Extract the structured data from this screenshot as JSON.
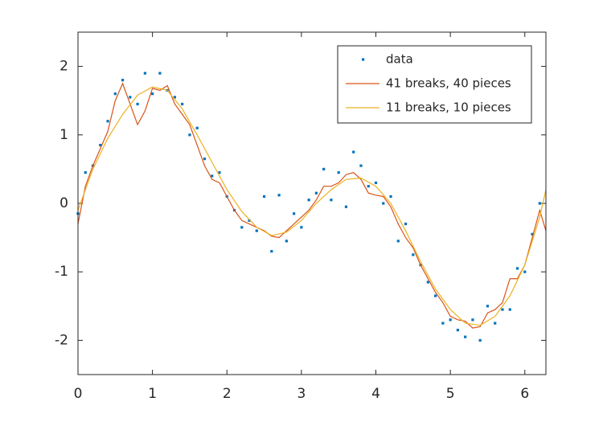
{
  "chart_data": {
    "type": "line",
    "xlim": [
      0,
      6.2832
    ],
    "ylim": [
      -2.5,
      2.5
    ],
    "xticks": [
      0,
      1,
      2,
      3,
      4,
      5,
      6
    ],
    "yticks": [
      -2,
      -1,
      0,
      1,
      2
    ],
    "grid": false,
    "box": true,
    "legend": "northeast",
    "series": [
      {
        "name": "data",
        "color": "#0072bd",
        "style": "markers",
        "x": [
          0,
          0.1,
          0.2,
          0.3,
          0.4,
          0.5,
          0.6,
          0.7,
          0.8,
          0.9,
          1.0,
          1.1,
          1.2,
          1.3,
          1.4,
          1.5,
          1.6,
          1.7,
          1.8,
          1.9,
          2.0,
          2.1,
          2.2,
          2.3,
          2.4,
          2.5,
          2.6,
          2.7,
          2.8,
          2.9,
          3.0,
          3.1,
          3.2,
          3.3,
          3.4,
          3.5,
          3.6,
          3.7,
          3.8,
          3.9,
          4.0,
          4.1,
          4.2,
          4.3,
          4.4,
          4.5,
          4.6,
          4.7,
          4.8,
          4.9,
          5.0,
          5.1,
          5.2,
          5.3,
          5.4,
          5.5,
          5.6,
          5.7,
          5.8,
          5.9,
          6.0,
          6.1,
          6.2
        ],
        "values": [
          -0.15,
          0.45,
          0.55,
          0.85,
          1.2,
          1.6,
          1.8,
          1.55,
          1.45,
          1.9,
          1.6,
          1.9,
          1.65,
          1.55,
          1.45,
          1.0,
          1.1,
          0.65,
          0.4,
          0.45,
          0.1,
          -0.1,
          -0.35,
          -0.25,
          -0.4,
          0.1,
          -0.7,
          0.12,
          -0.55,
          -0.15,
          -0.35,
          0.05,
          0.15,
          0.5,
          0.05,
          0.45,
          -0.05,
          0.75,
          0.55,
          0.25,
          0.3,
          0.0,
          0.1,
          -0.55,
          -0.3,
          -0.75,
          -0.9,
          -1.15,
          -1.35,
          -1.75,
          -1.7,
          -1.85,
          -1.95,
          -1.7,
          -2.0,
          -1.5,
          -1.75,
          -1.55,
          -1.55,
          -0.95,
          -1.0,
          -0.45,
          0.0
        ]
      },
      {
        "name": "41 breaks, 40 pieces",
        "color": "#d95319",
        "style": "line",
        "x": [
          0,
          0.1,
          0.2,
          0.3,
          0.4,
          0.5,
          0.6,
          0.7,
          0.8,
          0.9,
          1.0,
          1.1,
          1.2,
          1.3,
          1.4,
          1.5,
          1.6,
          1.7,
          1.8,
          1.9,
          2.0,
          2.1,
          2.2,
          2.3,
          2.4,
          2.5,
          2.6,
          2.7,
          2.8,
          2.9,
          3.0,
          3.1,
          3.2,
          3.3,
          3.4,
          3.5,
          3.6,
          3.7,
          3.8,
          3.9,
          4.0,
          4.1,
          4.2,
          4.3,
          4.4,
          4.5,
          4.6,
          4.7,
          4.8,
          4.9,
          5.0,
          5.1,
          5.2,
          5.3,
          5.4,
          5.5,
          5.6,
          5.7,
          5.8,
          5.9,
          6.0,
          6.1,
          6.2,
          6.2832
        ],
        "values": [
          -0.3,
          0.25,
          0.55,
          0.8,
          1.05,
          1.5,
          1.75,
          1.45,
          1.15,
          1.35,
          1.68,
          1.65,
          1.72,
          1.45,
          1.3,
          1.15,
          0.85,
          0.55,
          0.35,
          0.3,
          0.1,
          -0.1,
          -0.25,
          -0.3,
          -0.35,
          -0.4,
          -0.48,
          -0.5,
          -0.4,
          -0.3,
          -0.2,
          -0.1,
          0.05,
          0.25,
          0.25,
          0.3,
          0.42,
          0.45,
          0.35,
          0.15,
          0.12,
          0.1,
          -0.05,
          -0.3,
          -0.5,
          -0.65,
          -0.9,
          -1.1,
          -1.3,
          -1.45,
          -1.65,
          -1.7,
          -1.72,
          -1.82,
          -1.8,
          -1.6,
          -1.55,
          -1.45,
          -1.1,
          -1.1,
          -0.9,
          -0.5,
          -0.1,
          -0.4
        ]
      },
      {
        "name": "11 breaks, 10 pieces",
        "color": "#edb120",
        "style": "line",
        "x": [
          0,
          0.2,
          0.4,
          0.6,
          0.8,
          1.0,
          1.2,
          1.4,
          1.6,
          1.8,
          2.0,
          2.2,
          2.4,
          2.6,
          2.8,
          3.0,
          3.2,
          3.4,
          3.6,
          3.8,
          4.0,
          4.2,
          4.4,
          4.6,
          4.8,
          5.0,
          5.2,
          5.4,
          5.6,
          5.8,
          6.0,
          6.2,
          6.2832
        ],
        "values": [
          -0.1,
          0.5,
          0.95,
          1.3,
          1.58,
          1.7,
          1.65,
          1.38,
          1.0,
          0.6,
          0.2,
          -0.12,
          -0.35,
          -0.47,
          -0.42,
          -0.25,
          0.0,
          0.2,
          0.35,
          0.37,
          0.25,
          0.0,
          -0.4,
          -0.85,
          -1.25,
          -1.55,
          -1.75,
          -1.78,
          -1.65,
          -1.35,
          -0.9,
          -0.2,
          0.2
        ]
      }
    ]
  }
}
